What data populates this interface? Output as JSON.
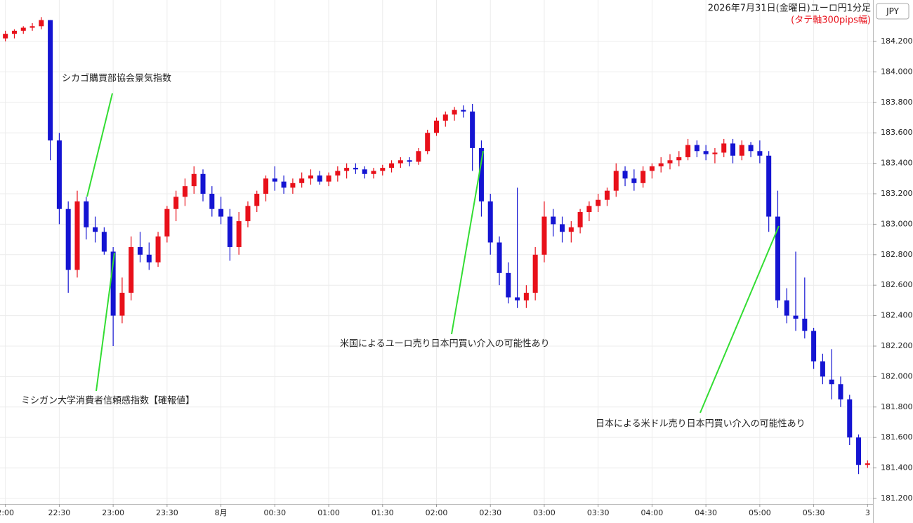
{
  "chart_data": {
    "type": "candlestick",
    "title": "2026年7月31日(金曜日)ユーロ円1分足",
    "subtitle": "(タテ軸300pips幅)",
    "currency": "JPY",
    "up_color": "#e8101a",
    "down_color": "#1414d2",
    "annotation_color": "#33dd33",
    "grid": true,
    "xlim": [
      -3,
      483
    ],
    "ylim": [
      181.163,
      184.472
    ],
    "xticks": [
      {
        "value": 0,
        "label": "2:00"
      },
      {
        "value": 30,
        "label": "22:30"
      },
      {
        "value": 60,
        "label": "23:00"
      },
      {
        "value": 90,
        "label": "23:30"
      },
      {
        "value": 120,
        "label": "8月"
      },
      {
        "value": 150,
        "label": "00:30"
      },
      {
        "value": 180,
        "label": "01:00"
      },
      {
        "value": 210,
        "label": "01:30"
      },
      {
        "value": 240,
        "label": "02:00"
      },
      {
        "value": 270,
        "label": "02:30"
      },
      {
        "value": 300,
        "label": "03:00"
      },
      {
        "value": 330,
        "label": "03:30"
      },
      {
        "value": 360,
        "label": "04:00"
      },
      {
        "value": 390,
        "label": "04:30"
      },
      {
        "value": 420,
        "label": "05:00"
      },
      {
        "value": 450,
        "label": "05:30"
      },
      {
        "value": 480,
        "label": "3"
      }
    ],
    "yticks": [
      {
        "value": 181.2,
        "label": "181.200"
      },
      {
        "value": 181.4,
        "label": "181.400"
      },
      {
        "value": 181.6,
        "label": "181.600"
      },
      {
        "value": 181.8,
        "label": "181.800"
      },
      {
        "value": 182.0,
        "label": "182.000"
      },
      {
        "value": 182.2,
        "label": "182.200"
      },
      {
        "value": 182.4,
        "label": "182.400"
      },
      {
        "value": 182.6,
        "label": "182.600"
      },
      {
        "value": 182.8,
        "label": "182.800"
      },
      {
        "value": 183.0,
        "label": "183.000"
      },
      {
        "value": 183.2,
        "label": "183.200"
      },
      {
        "value": 183.4,
        "label": "183.400"
      },
      {
        "value": 183.6,
        "label": "183.600"
      },
      {
        "value": 183.8,
        "label": "183.800"
      },
      {
        "value": 184.0,
        "label": "184.000"
      },
      {
        "value": 184.2,
        "label": "184.200"
      }
    ],
    "annotations": [
      "シカゴ購買部協会景気指数",
      "ミシガン大学消費者信頼感指数【確報値】",
      "米国によるユーロ売り日本円買い介入の可能性あり",
      "日本による米ドル売り日本円買い介入の可能性あり"
    ],
    "x": [
      0,
      5,
      10,
      15,
      20,
      25,
      30,
      35,
      40,
      45,
      50,
      55,
      60,
      65,
      70,
      75,
      80,
      85,
      90,
      95,
      100,
      105,
      110,
      115,
      120,
      125,
      130,
      135,
      140,
      145,
      150,
      155,
      160,
      165,
      170,
      175,
      180,
      185,
      190,
      195,
      200,
      205,
      210,
      215,
      220,
      225,
      230,
      235,
      240,
      245,
      250,
      255,
      260,
      265,
      270,
      275,
      280,
      285,
      290,
      295,
      300,
      305,
      310,
      315,
      320,
      325,
      330,
      335,
      340,
      345,
      350,
      355,
      360,
      365,
      370,
      375,
      380,
      385,
      390,
      395,
      400,
      405,
      410,
      415,
      420,
      425,
      430,
      435,
      440,
      445,
      450,
      455,
      460,
      465,
      470,
      475,
      480
    ],
    "open": [
      184.22,
      184.25,
      184.27,
      184.29,
      184.3,
      184.34,
      183.55,
      183.1,
      182.7,
      183.15,
      182.98,
      182.95,
      182.82,
      182.4,
      182.55,
      182.85,
      182.8,
      182.75,
      182.92,
      183.1,
      183.18,
      183.25,
      183.33,
      183.2,
      183.1,
      183.05,
      182.85,
      183.02,
      183.12,
      183.2,
      183.3,
      183.28,
      183.24,
      183.27,
      183.3,
      183.32,
      183.28,
      183.32,
      183.35,
      183.37,
      183.36,
      183.33,
      183.35,
      183.37,
      183.4,
      183.42,
      183.41,
      183.48,
      183.6,
      183.68,
      183.72,
      183.75,
      183.74,
      183.5,
      183.15,
      182.88,
      182.68,
      182.52,
      182.5,
      182.55,
      182.8,
      183.05,
      183.0,
      182.95,
      182.98,
      183.08,
      183.12,
      183.16,
      183.22,
      183.35,
      183.3,
      183.27,
      183.35,
      183.38,
      183.4,
      183.42,
      183.44,
      183.52,
      183.48,
      183.46,
      183.47,
      183.53,
      183.45,
      183.52,
      183.48,
      183.45,
      183.05,
      182.5,
      182.4,
      182.38,
      182.3,
      182.1,
      181.98,
      181.95,
      181.85,
      181.6,
      181.42
    ],
    "high": [
      184.27,
      184.28,
      184.3,
      184.32,
      184.36,
      184.34,
      183.6,
      183.15,
      183.22,
      183.18,
      183.05,
      182.98,
      182.85,
      182.65,
      182.92,
      182.95,
      182.88,
      182.95,
      183.12,
      183.22,
      183.3,
      183.38,
      183.36,
      183.25,
      183.18,
      183.1,
      183.08,
      183.15,
      183.22,
      183.32,
      183.38,
      183.32,
      183.3,
      183.34,
      183.36,
      183.35,
      183.34,
      183.38,
      183.4,
      183.4,
      183.38,
      183.37,
      183.39,
      183.42,
      183.44,
      183.44,
      183.5,
      183.62,
      183.7,
      183.74,
      183.77,
      183.78,
      183.79,
      183.55,
      183.2,
      182.92,
      182.75,
      183.24,
      182.6,
      182.85,
      183.15,
      183.1,
      183.05,
      183.02,
      183.1,
      183.15,
      183.2,
      183.24,
      183.4,
      183.38,
      183.36,
      183.38,
      183.4,
      183.44,
      183.46,
      183.48,
      183.56,
      183.55,
      183.52,
      183.5,
      183.56,
      183.56,
      183.55,
      183.54,
      183.55,
      183.48,
      183.22,
      182.58,
      182.82,
      182.65,
      182.32,
      182.15,
      182.18,
      182.0,
      181.88,
      181.62,
      181.45
    ],
    "low": [
      184.2,
      184.22,
      184.25,
      184.27,
      184.28,
      183.42,
      183.0,
      182.55,
      182.65,
      182.9,
      182.88,
      182.8,
      182.2,
      182.35,
      182.5,
      182.75,
      182.7,
      182.72,
      182.88,
      183.02,
      183.12,
      183.2,
      183.15,
      183.05,
      183.0,
      182.76,
      182.8,
      182.98,
      183.08,
      183.15,
      183.22,
      183.2,
      183.2,
      183.24,
      183.26,
      183.26,
      183.25,
      183.28,
      183.3,
      183.33,
      183.3,
      183.3,
      183.32,
      183.34,
      183.37,
      183.38,
      183.39,
      183.46,
      183.58,
      183.64,
      183.68,
      183.7,
      183.35,
      183.05,
      182.8,
      182.6,
      182.48,
      182.45,
      182.45,
      182.5,
      182.75,
      182.92,
      182.88,
      182.88,
      182.94,
      183.02,
      183.08,
      183.12,
      183.18,
      183.25,
      183.22,
      183.24,
      183.3,
      183.34,
      183.36,
      183.38,
      183.42,
      183.44,
      183.42,
      183.4,
      183.44,
      183.4,
      183.42,
      183.44,
      183.4,
      182.95,
      182.45,
      182.35,
      182.3,
      182.25,
      182.05,
      181.95,
      181.85,
      181.8,
      181.55,
      181.36,
      181.4
    ],
    "close": [
      184.25,
      184.27,
      184.29,
      184.3,
      184.34,
      183.55,
      183.1,
      182.7,
      183.15,
      182.98,
      182.95,
      182.82,
      182.4,
      182.55,
      182.85,
      182.8,
      182.75,
      182.92,
      183.1,
      183.18,
      183.25,
      183.33,
      183.2,
      183.1,
      183.05,
      182.85,
      183.02,
      183.12,
      183.2,
      183.3,
      183.28,
      183.24,
      183.27,
      183.3,
      183.32,
      183.28,
      183.32,
      183.35,
      183.37,
      183.36,
      183.33,
      183.35,
      183.37,
      183.4,
      183.42,
      183.41,
      183.48,
      183.6,
      183.68,
      183.72,
      183.75,
      183.74,
      183.5,
      183.15,
      182.88,
      182.68,
      182.52,
      182.5,
      182.55,
      182.8,
      183.05,
      183.0,
      182.95,
      182.98,
      183.08,
      183.12,
      183.16,
      183.22,
      183.35,
      183.3,
      183.27,
      183.35,
      183.38,
      183.4,
      183.42,
      183.44,
      183.52,
      183.48,
      183.46,
      183.47,
      183.53,
      183.45,
      183.52,
      183.48,
      183.45,
      183.05,
      182.5,
      182.4,
      182.38,
      182.3,
      182.1,
      182.0,
      181.95,
      181.85,
      181.6,
      181.42,
      181.43
    ]
  }
}
